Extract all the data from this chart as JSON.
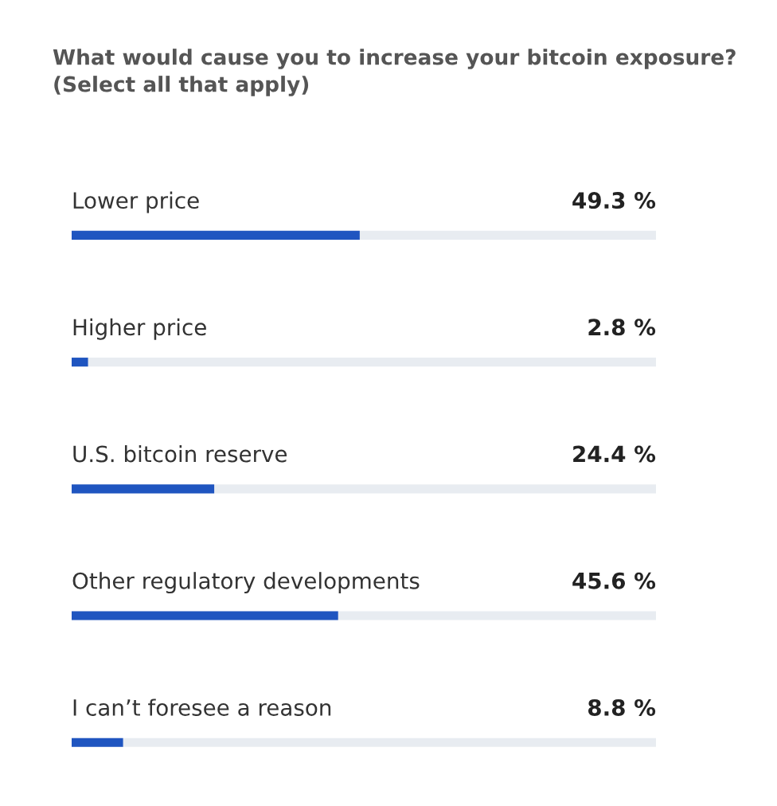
{
  "chart_data": {
    "type": "bar",
    "orientation": "horizontal",
    "title": "What would cause you to increase your bitcoin exposure?",
    "subtitle": "(Select all that apply)",
    "categories": [
      "Lower price",
      "Higher price",
      "U.S. bitcoin reserve",
      "Other regulatory developments",
      "I can’t foresee a reason"
    ],
    "values": [
      49.3,
      2.8,
      24.4,
      45.6,
      8.8
    ],
    "value_labels": [
      "49.3 %",
      "2.8 %",
      "24.4 %",
      "45.6 %",
      "8.8 %"
    ],
    "color": "#1f55c0",
    "xlim": [
      0,
      100
    ]
  }
}
